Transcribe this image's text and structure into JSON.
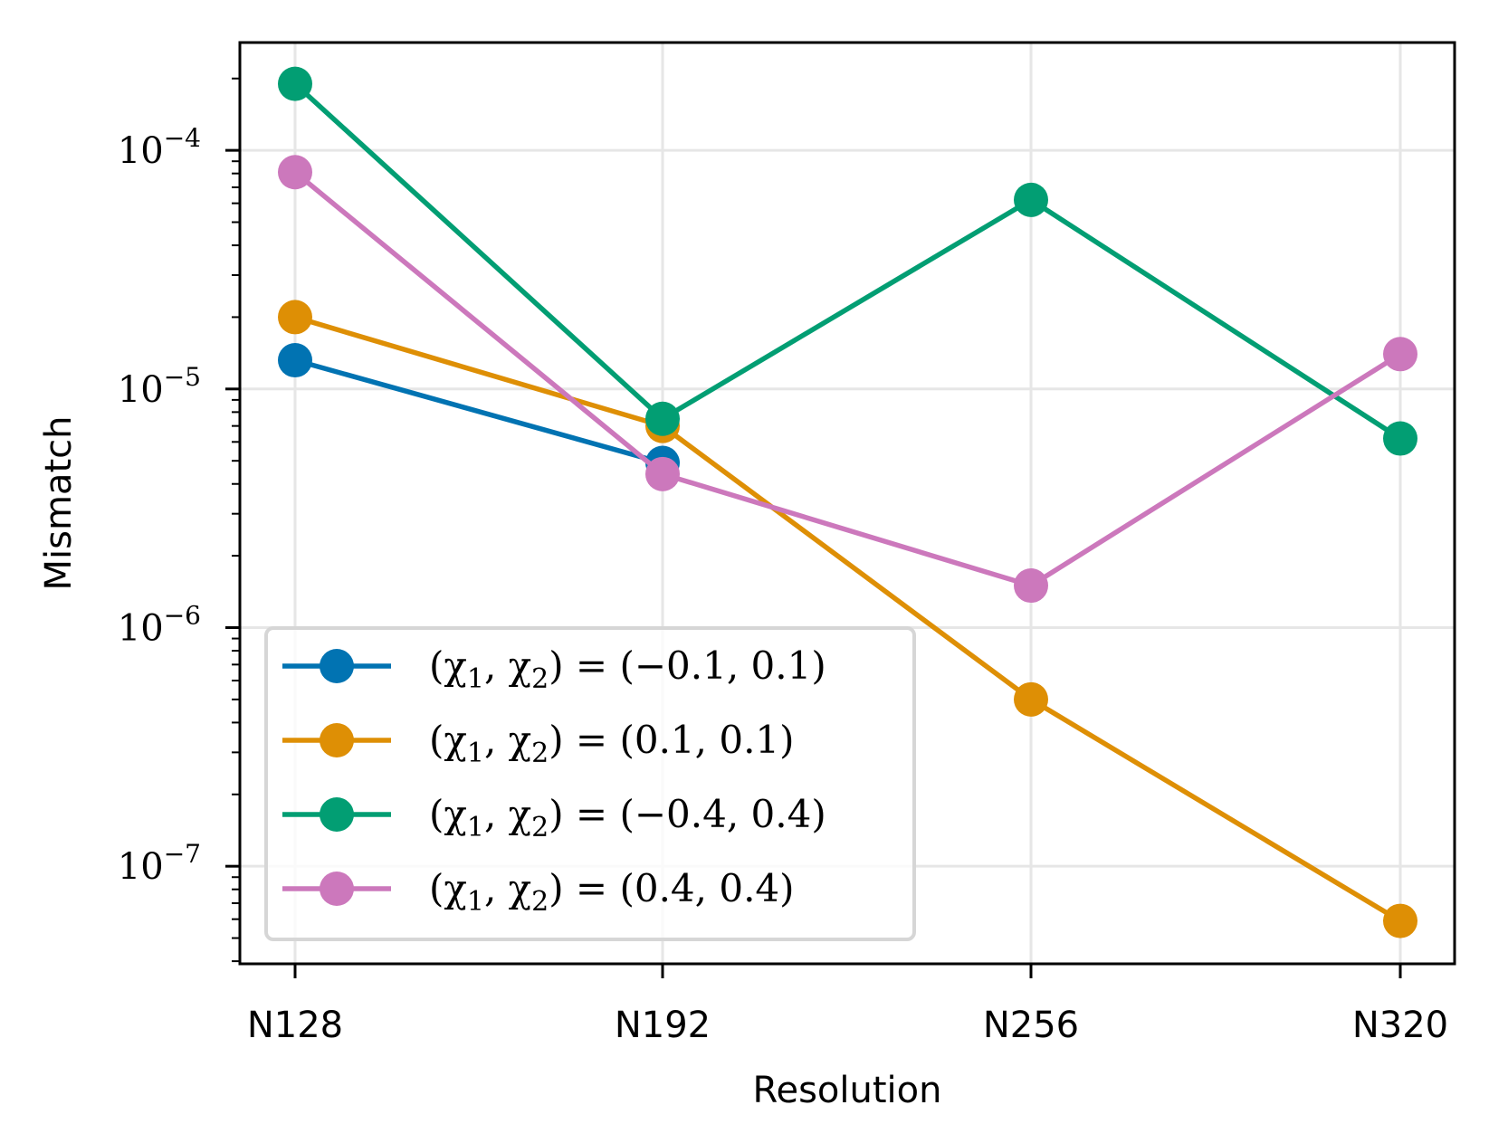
{
  "chart_data": {
    "type": "line",
    "title": "",
    "xlabel": "Resolution",
    "ylabel": "Mismatch",
    "yscale": "log",
    "ylim": [
      3.9e-08,
      0.000283
    ],
    "categories": [
      "N128",
      "N192",
      "N256",
      "N320"
    ],
    "yticks": [
      {
        "value": 0.0001,
        "base": "10",
        "exp": "−4"
      },
      {
        "value": 1e-05,
        "base": "10",
        "exp": "−5"
      },
      {
        "value": 1e-06,
        "base": "10",
        "exp": "−6"
      },
      {
        "value": 1e-07,
        "base": "10",
        "exp": "−7"
      }
    ],
    "grid": true,
    "legend_position": "lower-left",
    "series": [
      {
        "name": "(χ₁, χ₂) = (−0.1, 0.1)",
        "color": "#0173b2",
        "values": [
          1.32e-05,
          4.9e-06,
          null,
          null
        ]
      },
      {
        "name": "(χ₁, χ₂) = (0.1, 0.1)",
        "color": "#de8f05",
        "values": [
          2e-05,
          7e-06,
          5e-07,
          5.9e-08
        ]
      },
      {
        "name": "(χ₁, χ₂) = (−0.4, 0.4)",
        "color": "#029e73",
        "values": [
          0.00019,
          7.5e-06,
          6.2e-05,
          6.2e-06
        ]
      },
      {
        "name": "(χ₁, χ₂) = (0.4, 0.4)",
        "color": "#cc78bc",
        "values": [
          8.1e-05,
          4.4e-06,
          1.5e-06,
          1.4e-05
        ]
      }
    ],
    "legend": [
      {
        "prefix": "(χ",
        "sub1": "1",
        "mid": ", χ",
        "sub2": "2",
        "rest": ") = (−0.1, 0.1)"
      },
      {
        "prefix": "(χ",
        "sub1": "1",
        "mid": ", χ",
        "sub2": "2",
        "rest": ") = (0.1, 0.1)"
      },
      {
        "prefix": "(χ",
        "sub1": "1",
        "mid": ", χ",
        "sub2": "2",
        "rest": ") = (−0.4, 0.4)"
      },
      {
        "prefix": "(χ",
        "sub1": "1",
        "mid": ", χ",
        "sub2": "2",
        "rest": ") = (0.4, 0.4)"
      }
    ]
  }
}
